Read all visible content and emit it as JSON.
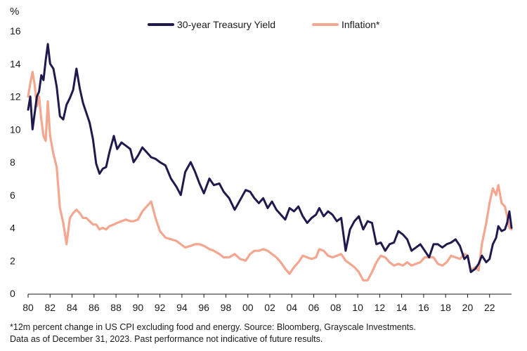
{
  "chart_data": {
    "type": "line",
    "y_unit": "%",
    "ylim": [
      0,
      16
    ],
    "y_ticks": [
      0,
      2,
      4,
      6,
      8,
      10,
      12,
      14,
      16
    ],
    "xlim": [
      1980,
      2024
    ],
    "x_ticks": [
      {
        "year": 1980,
        "label": "80"
      },
      {
        "year": 1982,
        "label": "82"
      },
      {
        "year": 1984,
        "label": "84"
      },
      {
        "year": 1986,
        "label": "86"
      },
      {
        "year": 1988,
        "label": "88"
      },
      {
        "year": 1990,
        "label": "90"
      },
      {
        "year": 1992,
        "label": "92"
      },
      {
        "year": 1994,
        "label": "94"
      },
      {
        "year": 1996,
        "label": "96"
      },
      {
        "year": 1998,
        "label": "98"
      },
      {
        "year": 2000,
        "label": "00"
      },
      {
        "year": 2002,
        "label": "02"
      },
      {
        "year": 2004,
        "label": "04"
      },
      {
        "year": 2006,
        "label": "06"
      },
      {
        "year": 2008,
        "label": "08"
      },
      {
        "year": 2010,
        "label": "10"
      },
      {
        "year": 2012,
        "label": "12"
      },
      {
        "year": 2014,
        "label": "14"
      },
      {
        "year": 2016,
        "label": "16"
      },
      {
        "year": 2018,
        "label": "18"
      },
      {
        "year": 2020,
        "label": "20"
      },
      {
        "year": 2022,
        "label": "22"
      }
    ],
    "legend_position": "top-right",
    "series": [
      {
        "name": "30-year Treasury Yield",
        "color": "#1f1a4d",
        "points": [
          [
            1980.0,
            11.2
          ],
          [
            1980.2,
            12.0
          ],
          [
            1980.4,
            10.0
          ],
          [
            1980.6,
            11.0
          ],
          [
            1980.8,
            12.0
          ],
          [
            1981.0,
            12.3
          ],
          [
            1981.2,
            13.3
          ],
          [
            1981.4,
            13.0
          ],
          [
            1981.6,
            14.2
          ],
          [
            1981.8,
            15.2
          ],
          [
            1982.0,
            14.0
          ],
          [
            1982.3,
            13.7
          ],
          [
            1982.6,
            12.6
          ],
          [
            1982.9,
            10.8
          ],
          [
            1983.2,
            10.6
          ],
          [
            1983.5,
            11.5
          ],
          [
            1983.8,
            11.9
          ],
          [
            1984.1,
            12.4
          ],
          [
            1984.4,
            13.7
          ],
          [
            1984.7,
            12.5
          ],
          [
            1985.0,
            11.6
          ],
          [
            1985.3,
            11.0
          ],
          [
            1985.6,
            10.4
          ],
          [
            1985.9,
            9.4
          ],
          [
            1986.2,
            7.9
          ],
          [
            1986.5,
            7.3
          ],
          [
            1986.8,
            7.6
          ],
          [
            1987.1,
            7.7
          ],
          [
            1987.4,
            8.6
          ],
          [
            1987.8,
            9.6
          ],
          [
            1988.1,
            8.8
          ],
          [
            1988.5,
            9.2
          ],
          [
            1988.9,
            9.0
          ],
          [
            1989.3,
            8.8
          ],
          [
            1989.6,
            8.0
          ],
          [
            1990.0,
            8.4
          ],
          [
            1990.4,
            8.9
          ],
          [
            1990.8,
            8.6
          ],
          [
            1991.2,
            8.3
          ],
          [
            1991.6,
            8.2
          ],
          [
            1992.0,
            8.0
          ],
          [
            1992.5,
            7.8
          ],
          [
            1993.0,
            7.0
          ],
          [
            1993.5,
            6.5
          ],
          [
            1993.9,
            6.0
          ],
          [
            1994.3,
            7.4
          ],
          [
            1994.8,
            8.0
          ],
          [
            1995.2,
            7.4
          ],
          [
            1995.6,
            6.7
          ],
          [
            1996.0,
            6.1
          ],
          [
            1996.5,
            7.0
          ],
          [
            1996.9,
            6.6
          ],
          [
            1997.4,
            6.7
          ],
          [
            1997.8,
            6.2
          ],
          [
            1998.3,
            5.8
          ],
          [
            1998.8,
            5.1
          ],
          [
            1999.3,
            5.7
          ],
          [
            1999.8,
            6.3
          ],
          [
            2000.2,
            6.2
          ],
          [
            2000.6,
            5.8
          ],
          [
            2001.0,
            5.5
          ],
          [
            2001.4,
            5.8
          ],
          [
            2001.8,
            5.2
          ],
          [
            2002.2,
            5.6
          ],
          [
            2002.6,
            5.1
          ],
          [
            2003.0,
            4.8
          ],
          [
            2003.4,
            4.5
          ],
          [
            2003.8,
            5.2
          ],
          [
            2004.2,
            5.0
          ],
          [
            2004.6,
            5.3
          ],
          [
            2005.0,
            4.7
          ],
          [
            2005.4,
            4.3
          ],
          [
            2005.8,
            4.6
          ],
          [
            2006.2,
            4.8
          ],
          [
            2006.5,
            5.2
          ],
          [
            2006.9,
            4.7
          ],
          [
            2007.3,
            5.0
          ],
          [
            2007.7,
            4.8
          ],
          [
            2008.1,
            4.4
          ],
          [
            2008.5,
            4.6
          ],
          [
            2008.9,
            2.6
          ],
          [
            2009.3,
            3.9
          ],
          [
            2009.7,
            4.4
          ],
          [
            2010.1,
            4.7
          ],
          [
            2010.5,
            3.9
          ],
          [
            2010.9,
            4.4
          ],
          [
            2011.3,
            4.3
          ],
          [
            2011.7,
            3.0
          ],
          [
            2012.1,
            3.1
          ],
          [
            2012.5,
            2.6
          ],
          [
            2012.9,
            3.0
          ],
          [
            2013.3,
            3.1
          ],
          [
            2013.7,
            3.8
          ],
          [
            2014.1,
            3.6
          ],
          [
            2014.5,
            3.3
          ],
          [
            2014.9,
            2.6
          ],
          [
            2015.3,
            2.8
          ],
          [
            2015.7,
            3.0
          ],
          [
            2016.1,
            2.6
          ],
          [
            2016.5,
            2.2
          ],
          [
            2016.9,
            3.0
          ],
          [
            2017.3,
            3.0
          ],
          [
            2017.7,
            2.8
          ],
          [
            2018.1,
            3.0
          ],
          [
            2018.5,
            3.1
          ],
          [
            2018.9,
            3.3
          ],
          [
            2019.3,
            2.9
          ],
          [
            2019.7,
            2.1
          ],
          [
            2020.0,
            2.3
          ],
          [
            2020.3,
            1.3
          ],
          [
            2020.7,
            1.5
          ],
          [
            2021.0,
            1.8
          ],
          [
            2021.3,
            2.3
          ],
          [
            2021.7,
            1.9
          ],
          [
            2022.0,
            2.1
          ],
          [
            2022.3,
            3.0
          ],
          [
            2022.6,
            3.4
          ],
          [
            2022.8,
            4.1
          ],
          [
            2023.1,
            3.8
          ],
          [
            2023.4,
            3.9
          ],
          [
            2023.6,
            4.3
          ],
          [
            2023.8,
            5.0
          ],
          [
            2024.0,
            4.0
          ]
        ]
      },
      {
        "name": "Inflation*",
        "color": "#f4a68f",
        "points": [
          [
            1980.0,
            12.0
          ],
          [
            1980.2,
            12.8
          ],
          [
            1980.4,
            13.5
          ],
          [
            1980.6,
            12.7
          ],
          [
            1980.8,
            11.4
          ],
          [
            1981.0,
            12.0
          ],
          [
            1981.2,
            10.6
          ],
          [
            1981.4,
            9.6
          ],
          [
            1981.6,
            9.3
          ],
          [
            1981.8,
            11.7
          ],
          [
            1982.0,
            9.6
          ],
          [
            1982.3,
            8.5
          ],
          [
            1982.6,
            7.7
          ],
          [
            1982.9,
            5.2
          ],
          [
            1983.2,
            4.3
          ],
          [
            1983.5,
            3.0
          ],
          [
            1983.8,
            4.6
          ],
          [
            1984.1,
            4.9
          ],
          [
            1984.4,
            5.1
          ],
          [
            1984.7,
            4.9
          ],
          [
            1985.0,
            4.6
          ],
          [
            1985.3,
            4.6
          ],
          [
            1985.6,
            4.4
          ],
          [
            1985.9,
            4.2
          ],
          [
            1986.2,
            4.2
          ],
          [
            1986.5,
            3.9
          ],
          [
            1986.8,
            4.0
          ],
          [
            1987.1,
            3.9
          ],
          [
            1987.4,
            4.1
          ],
          [
            1987.8,
            4.2
          ],
          [
            1988.1,
            4.3
          ],
          [
            1988.5,
            4.4
          ],
          [
            1988.9,
            4.5
          ],
          [
            1989.3,
            4.4
          ],
          [
            1989.6,
            4.4
          ],
          [
            1990.0,
            4.5
          ],
          [
            1990.4,
            5.0
          ],
          [
            1990.8,
            5.3
          ],
          [
            1991.2,
            5.6
          ],
          [
            1991.6,
            4.6
          ],
          [
            1992.0,
            3.8
          ],
          [
            1992.5,
            3.4
          ],
          [
            1993.0,
            3.3
          ],
          [
            1993.5,
            3.2
          ],
          [
            1993.9,
            3.0
          ],
          [
            1994.3,
            2.8
          ],
          [
            1994.8,
            2.9
          ],
          [
            1995.2,
            3.0
          ],
          [
            1995.6,
            3.0
          ],
          [
            1996.0,
            2.9
          ],
          [
            1996.5,
            2.7
          ],
          [
            1996.9,
            2.6
          ],
          [
            1997.4,
            2.4
          ],
          [
            1997.8,
            2.2
          ],
          [
            1998.3,
            2.2
          ],
          [
            1998.8,
            2.4
          ],
          [
            1999.3,
            2.1
          ],
          [
            1999.8,
            2.0
          ],
          [
            2000.2,
            2.4
          ],
          [
            2000.6,
            2.6
          ],
          [
            2001.0,
            2.6
          ],
          [
            2001.4,
            2.7
          ],
          [
            2001.8,
            2.6
          ],
          [
            2002.2,
            2.4
          ],
          [
            2002.6,
            2.2
          ],
          [
            2003.0,
            1.9
          ],
          [
            2003.4,
            1.5
          ],
          [
            2003.8,
            1.2
          ],
          [
            2004.2,
            1.6
          ],
          [
            2004.6,
            1.9
          ],
          [
            2005.0,
            2.3
          ],
          [
            2005.4,
            2.2
          ],
          [
            2005.8,
            2.1
          ],
          [
            2006.2,
            2.2
          ],
          [
            2006.5,
            2.7
          ],
          [
            2006.9,
            2.6
          ],
          [
            2007.3,
            2.3
          ],
          [
            2007.7,
            2.2
          ],
          [
            2008.1,
            2.3
          ],
          [
            2008.5,
            2.4
          ],
          [
            2008.9,
            2.0
          ],
          [
            2009.3,
            1.8
          ],
          [
            2009.7,
            1.6
          ],
          [
            2010.1,
            1.3
          ],
          [
            2010.5,
            0.8
          ],
          [
            2010.9,
            0.8
          ],
          [
            2011.3,
            1.3
          ],
          [
            2011.7,
            1.9
          ],
          [
            2012.1,
            2.3
          ],
          [
            2012.5,
            2.2
          ],
          [
            2012.9,
            1.9
          ],
          [
            2013.3,
            1.7
          ],
          [
            2013.7,
            1.8
          ],
          [
            2014.1,
            1.7
          ],
          [
            2014.5,
            1.9
          ],
          [
            2014.9,
            1.7
          ],
          [
            2015.3,
            1.8
          ],
          [
            2015.7,
            1.9
          ],
          [
            2016.1,
            2.2
          ],
          [
            2016.5,
            2.2
          ],
          [
            2016.9,
            2.2
          ],
          [
            2017.3,
            1.8
          ],
          [
            2017.7,
            1.7
          ],
          [
            2018.1,
            1.9
          ],
          [
            2018.5,
            2.3
          ],
          [
            2018.9,
            2.2
          ],
          [
            2019.3,
            2.1
          ],
          [
            2019.7,
            2.4
          ],
          [
            2020.0,
            2.3
          ],
          [
            2020.3,
            1.4
          ],
          [
            2020.7,
            1.6
          ],
          [
            2021.0,
            1.4
          ],
          [
            2021.3,
            3.0
          ],
          [
            2021.7,
            4.3
          ],
          [
            2022.0,
            5.5
          ],
          [
            2022.3,
            6.4
          ],
          [
            2022.6,
            6.0
          ],
          [
            2022.8,
            6.6
          ],
          [
            2023.1,
            5.5
          ],
          [
            2023.4,
            5.3
          ],
          [
            2023.6,
            4.7
          ],
          [
            2023.8,
            4.0
          ],
          [
            2024.0,
            3.9
          ]
        ]
      }
    ]
  },
  "footnote": {
    "line1": "*12m percent change in US CPI excluding food and energy. Source: Bloomberg, Grayscale Investments.",
    "line2": "Data as of December 31, 2023. Past performance not indicative of future results."
  }
}
